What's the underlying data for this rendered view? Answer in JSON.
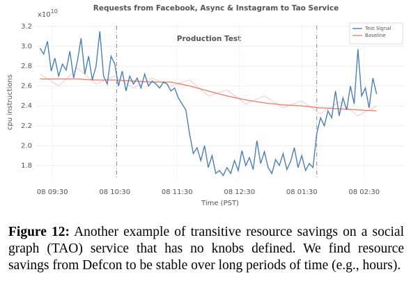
{
  "chart_data": {
    "type": "line",
    "title": "Requests from Facebook, Async & Instagram to Tao Service",
    "ylabel": "cpu instructions",
    "xlabel": "Time (PST)",
    "yscale_base": "x10",
    "yscale_exponent": "10",
    "annotation": "Production Test",
    "vlines": [
      10.53,
      13.74
    ],
    "xlim": [
      9.24,
      15.14
    ],
    "xticks": [
      {
        "value": 9.5,
        "label": "08 09:30"
      },
      {
        "value": 10.5,
        "label": "08 10:30"
      },
      {
        "value": 11.5,
        "label": "08 11:30"
      },
      {
        "value": 12.5,
        "label": "08 12:30"
      },
      {
        "value": 13.5,
        "label": "08 01:30"
      },
      {
        "value": 14.5,
        "label": "08 02:30"
      }
    ],
    "ylim": [
      1.66,
      3.22
    ],
    "yticks": [
      1.8,
      {
        "value": 2,
        "label": "2.0"
      },
      2.2,
      2.4,
      2.6,
      2.8,
      {
        "value": 3,
        "label": "3.0"
      },
      3.2
    ],
    "grid": true,
    "legend": "upper right",
    "series": [
      {
        "name": "Test Signal",
        "color": "#4a7fb5",
        "x": [
          9.3,
          9.36,
          9.42,
          9.48,
          9.54,
          9.6,
          9.66,
          9.72,
          9.78,
          9.84,
          9.9,
          9.96,
          10.02,
          10.08,
          10.14,
          10.2,
          10.26,
          10.32,
          10.38,
          10.44,
          10.5,
          10.56,
          10.62,
          10.68,
          10.74,
          10.8,
          10.86,
          10.92,
          10.98,
          11.04,
          11.1,
          11.16,
          11.22,
          11.28,
          11.34,
          11.4,
          11.46,
          11.52,
          11.58,
          11.64,
          11.7,
          11.76,
          11.82,
          11.88,
          11.94,
          12,
          12.06,
          12.12,
          12.18,
          12.24,
          12.3,
          12.36,
          12.42,
          12.48,
          12.54,
          12.6,
          12.66,
          12.72,
          12.78,
          12.84,
          12.9,
          12.96,
          13.02,
          13.08,
          13.14,
          13.2,
          13.26,
          13.32,
          13.38,
          13.44,
          13.5,
          13.56,
          13.62,
          13.68,
          13.74,
          13.8,
          13.86,
          13.92,
          13.98,
          14.04,
          14.1,
          14.16,
          14.22,
          14.28,
          14.34,
          14.4,
          14.46,
          14.52,
          14.58,
          14.64,
          14.7
        ],
        "values": [
          2.98,
          2.92,
          3.05,
          2.75,
          2.88,
          2.7,
          2.82,
          2.76,
          2.95,
          2.68,
          2.85,
          3.08,
          2.72,
          2.9,
          2.66,
          2.8,
          3.15,
          2.7,
          2.62,
          2.9,
          2.82,
          2.6,
          2.75,
          2.55,
          2.7,
          2.62,
          2.68,
          2.58,
          2.72,
          2.6,
          2.65,
          2.62,
          2.58,
          2.64,
          2.62,
          2.55,
          2.58,
          2.48,
          2.42,
          2.36,
          2.12,
          1.92,
          1.98,
          1.85,
          2.0,
          1.78,
          1.9,
          1.72,
          1.75,
          1.7,
          1.78,
          1.72,
          1.85,
          1.75,
          1.95,
          1.8,
          1.88,
          1.76,
          2.05,
          1.82,
          1.94,
          1.78,
          1.72,
          1.86,
          1.8,
          1.92,
          1.76,
          1.84,
          1.98,
          1.78,
          1.9,
          1.75,
          1.82,
          1.78,
          2.12,
          2.28,
          2.2,
          2.35,
          2.28,
          2.55,
          2.3,
          2.48,
          2.36,
          2.6,
          2.42,
          2.97,
          2.5,
          2.58,
          2.38,
          2.68,
          2.52
        ]
      },
      {
        "name": "Baseline",
        "color": "#f08070",
        "x": [
          9.3,
          9.6,
          9.9,
          10.2,
          10.5,
          10.8,
          11.1,
          11.4,
          11.7,
          12.0,
          12.3,
          12.6,
          12.9,
          13.2,
          13.5,
          13.8,
          14.1,
          14.4,
          14.7
        ],
        "values": [
          2.67,
          2.67,
          2.67,
          2.66,
          2.66,
          2.65,
          2.64,
          2.64,
          2.6,
          2.55,
          2.5,
          2.46,
          2.43,
          2.41,
          2.4,
          2.38,
          2.37,
          2.36,
          2.35
        ]
      },
      {
        "color": "#f7c6cc",
        "x": [
          9.3,
          9.6,
          9.9,
          10.2,
          10.5,
          10.8,
          11.1,
          11.4,
          11.7,
          12.0,
          12.3,
          12.6,
          12.9,
          13.2,
          13.5,
          13.8,
          14.1,
          14.4,
          14.7
        ],
        "values": [
          2.72,
          2.6,
          2.78,
          2.62,
          2.7,
          2.58,
          2.68,
          2.6,
          2.66,
          2.5,
          2.56,
          2.42,
          2.5,
          2.38,
          2.45,
          2.32,
          2.44,
          2.3,
          2.4
        ]
      }
    ]
  },
  "caption": {
    "label": "Figure 12:",
    "text": "Another example of transitive resource savings on a social graph (TAO) service that has no knobs defined. We find resource savings from Defcon to be stable over long periods of time (e.g., hours)."
  }
}
